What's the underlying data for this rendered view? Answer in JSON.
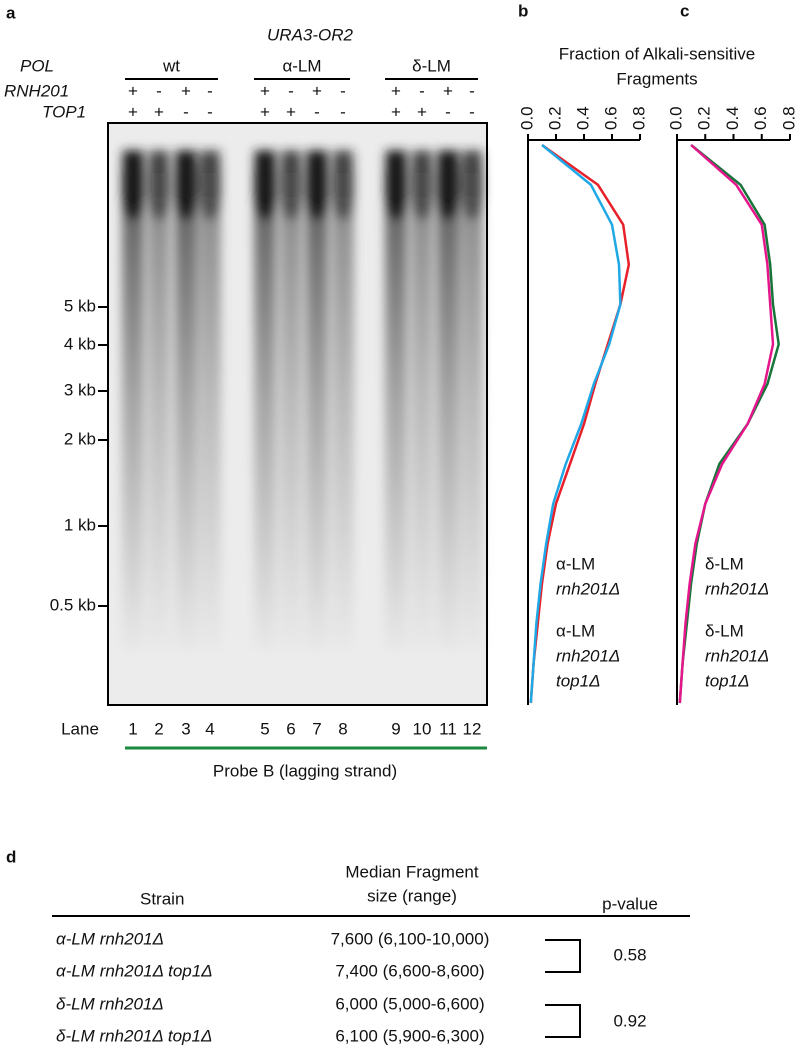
{
  "panel_labels": [
    "a",
    "b",
    "c",
    "d"
  ],
  "gel": {
    "title": "URA3-OR2",
    "row_labels": [
      "POL",
      "RNH201",
      "TOP1"
    ],
    "groups": [
      "wt",
      "α-LM",
      "δ-LM"
    ],
    "rnh201": [
      "+",
      "-",
      "+",
      "-",
      "+",
      "-",
      "+",
      "-",
      "+",
      "-",
      "+",
      "-"
    ],
    "top1": [
      "+",
      "+",
      "-",
      "-",
      "+",
      "+",
      "-",
      "-",
      "+",
      "+",
      "-",
      "-"
    ],
    "sign_colors": [
      "#000000",
      "#000000",
      "#000000",
      "#000000",
      "#000000",
      "#e8202a",
      "#000000",
      "#1fa8e6",
      "#000000",
      "#17753a",
      "#000000",
      "#e5168c"
    ],
    "size_markers": [
      "5 kb",
      "4 kb",
      "3 kb",
      "2 kb",
      "1 kb",
      "0.5 kb"
    ],
    "lane_label": "Lane",
    "lanes": [
      "1",
      "2",
      "3",
      "4",
      "5",
      "6",
      "7",
      "8",
      "9",
      "10",
      "11",
      "12"
    ],
    "probe": "Probe B (lagging strand)"
  },
  "profile_title": [
    "Fraction of Alkali-sensitive",
    "Fragments"
  ],
  "chart_data": [
    {
      "type": "line",
      "categories": [
        null,
        null,
        null,
        null,
        null,
        null,
        null,
        null,
        null,
        null,
        null,
        null,
        null,
        null,
        null
      ],
      "xlim": [
        0,
        0.8
      ],
      "xticks": [
        {
          "value": 0,
          "label": "0.0"
        },
        0.2,
        0.4,
        0.6,
        0.8
      ],
      "series": [
        {
          "label_lines": [
            "α-LM",
            "rnh201Δ"
          ],
          "color": "#e8202a",
          "values": [
            0.1,
            0.5,
            0.68,
            0.72,
            0.66,
            0.57,
            0.48,
            0.4,
            0.3,
            0.2,
            0.14,
            0.1,
            0.07,
            0.04,
            0.02
          ]
        },
        {
          "label_lines": [
            "α-LM",
            "rnh201Δ",
            "top1Δ"
          ],
          "color": "#1fa8e6",
          "values": [
            0.1,
            0.45,
            0.6,
            0.65,
            0.66,
            0.58,
            0.47,
            0.38,
            0.27,
            0.18,
            0.13,
            0.09,
            0.06,
            0.04,
            0.02
          ]
        }
      ]
    },
    {
      "type": "line",
      "categories": [
        null,
        null,
        null,
        null,
        null,
        null,
        null,
        null,
        null,
        null,
        null,
        null,
        null,
        null,
        null
      ],
      "xlim": [
        0,
        0.8
      ],
      "xticks": [
        {
          "value": 0,
          "label": "0.0"
        },
        0.2,
        0.4,
        0.6,
        0.8
      ],
      "series": [
        {
          "label_lines": [
            "δ-LM",
            "rnh201Δ"
          ],
          "color": "#17753a",
          "values": [
            0.1,
            0.45,
            0.62,
            0.66,
            0.68,
            0.72,
            0.64,
            0.5,
            0.3,
            0.2,
            0.14,
            0.1,
            0.07,
            0.04,
            0.02
          ]
        },
        {
          "label_lines": [
            "δ-LM",
            "rnh201Δ",
            "top1Δ"
          ],
          "color": "#e5168c",
          "values": [
            0.1,
            0.42,
            0.6,
            0.64,
            0.66,
            0.68,
            0.62,
            0.5,
            0.32,
            0.2,
            0.13,
            0.09,
            0.06,
            0.04,
            0.02
          ]
        }
      ]
    }
  ],
  "table": {
    "headers": [
      "Strain",
      "Median Fragment",
      "size (range)",
      "p-value"
    ],
    "rows": [
      {
        "strain": "α-LM rnh201Δ",
        "median": "7,600 (6,100-10,000)",
        "color": "#e8202a"
      },
      {
        "strain": "α-LM rnh201Δ top1Δ",
        "median": "7,400 (6,600-8,600)",
        "color": "#1fa8e6"
      },
      {
        "strain": "δ-LM rnh201Δ",
        "median": "6,000 (5,000-6,600)",
        "color": "#17753a"
      },
      {
        "strain": "δ-LM rnh201Δ top1Δ",
        "median": "6,100 (5,900-6,300)",
        "color": "#e5168c"
      }
    ],
    "p_values": [
      "0.58",
      "0.92"
    ]
  }
}
